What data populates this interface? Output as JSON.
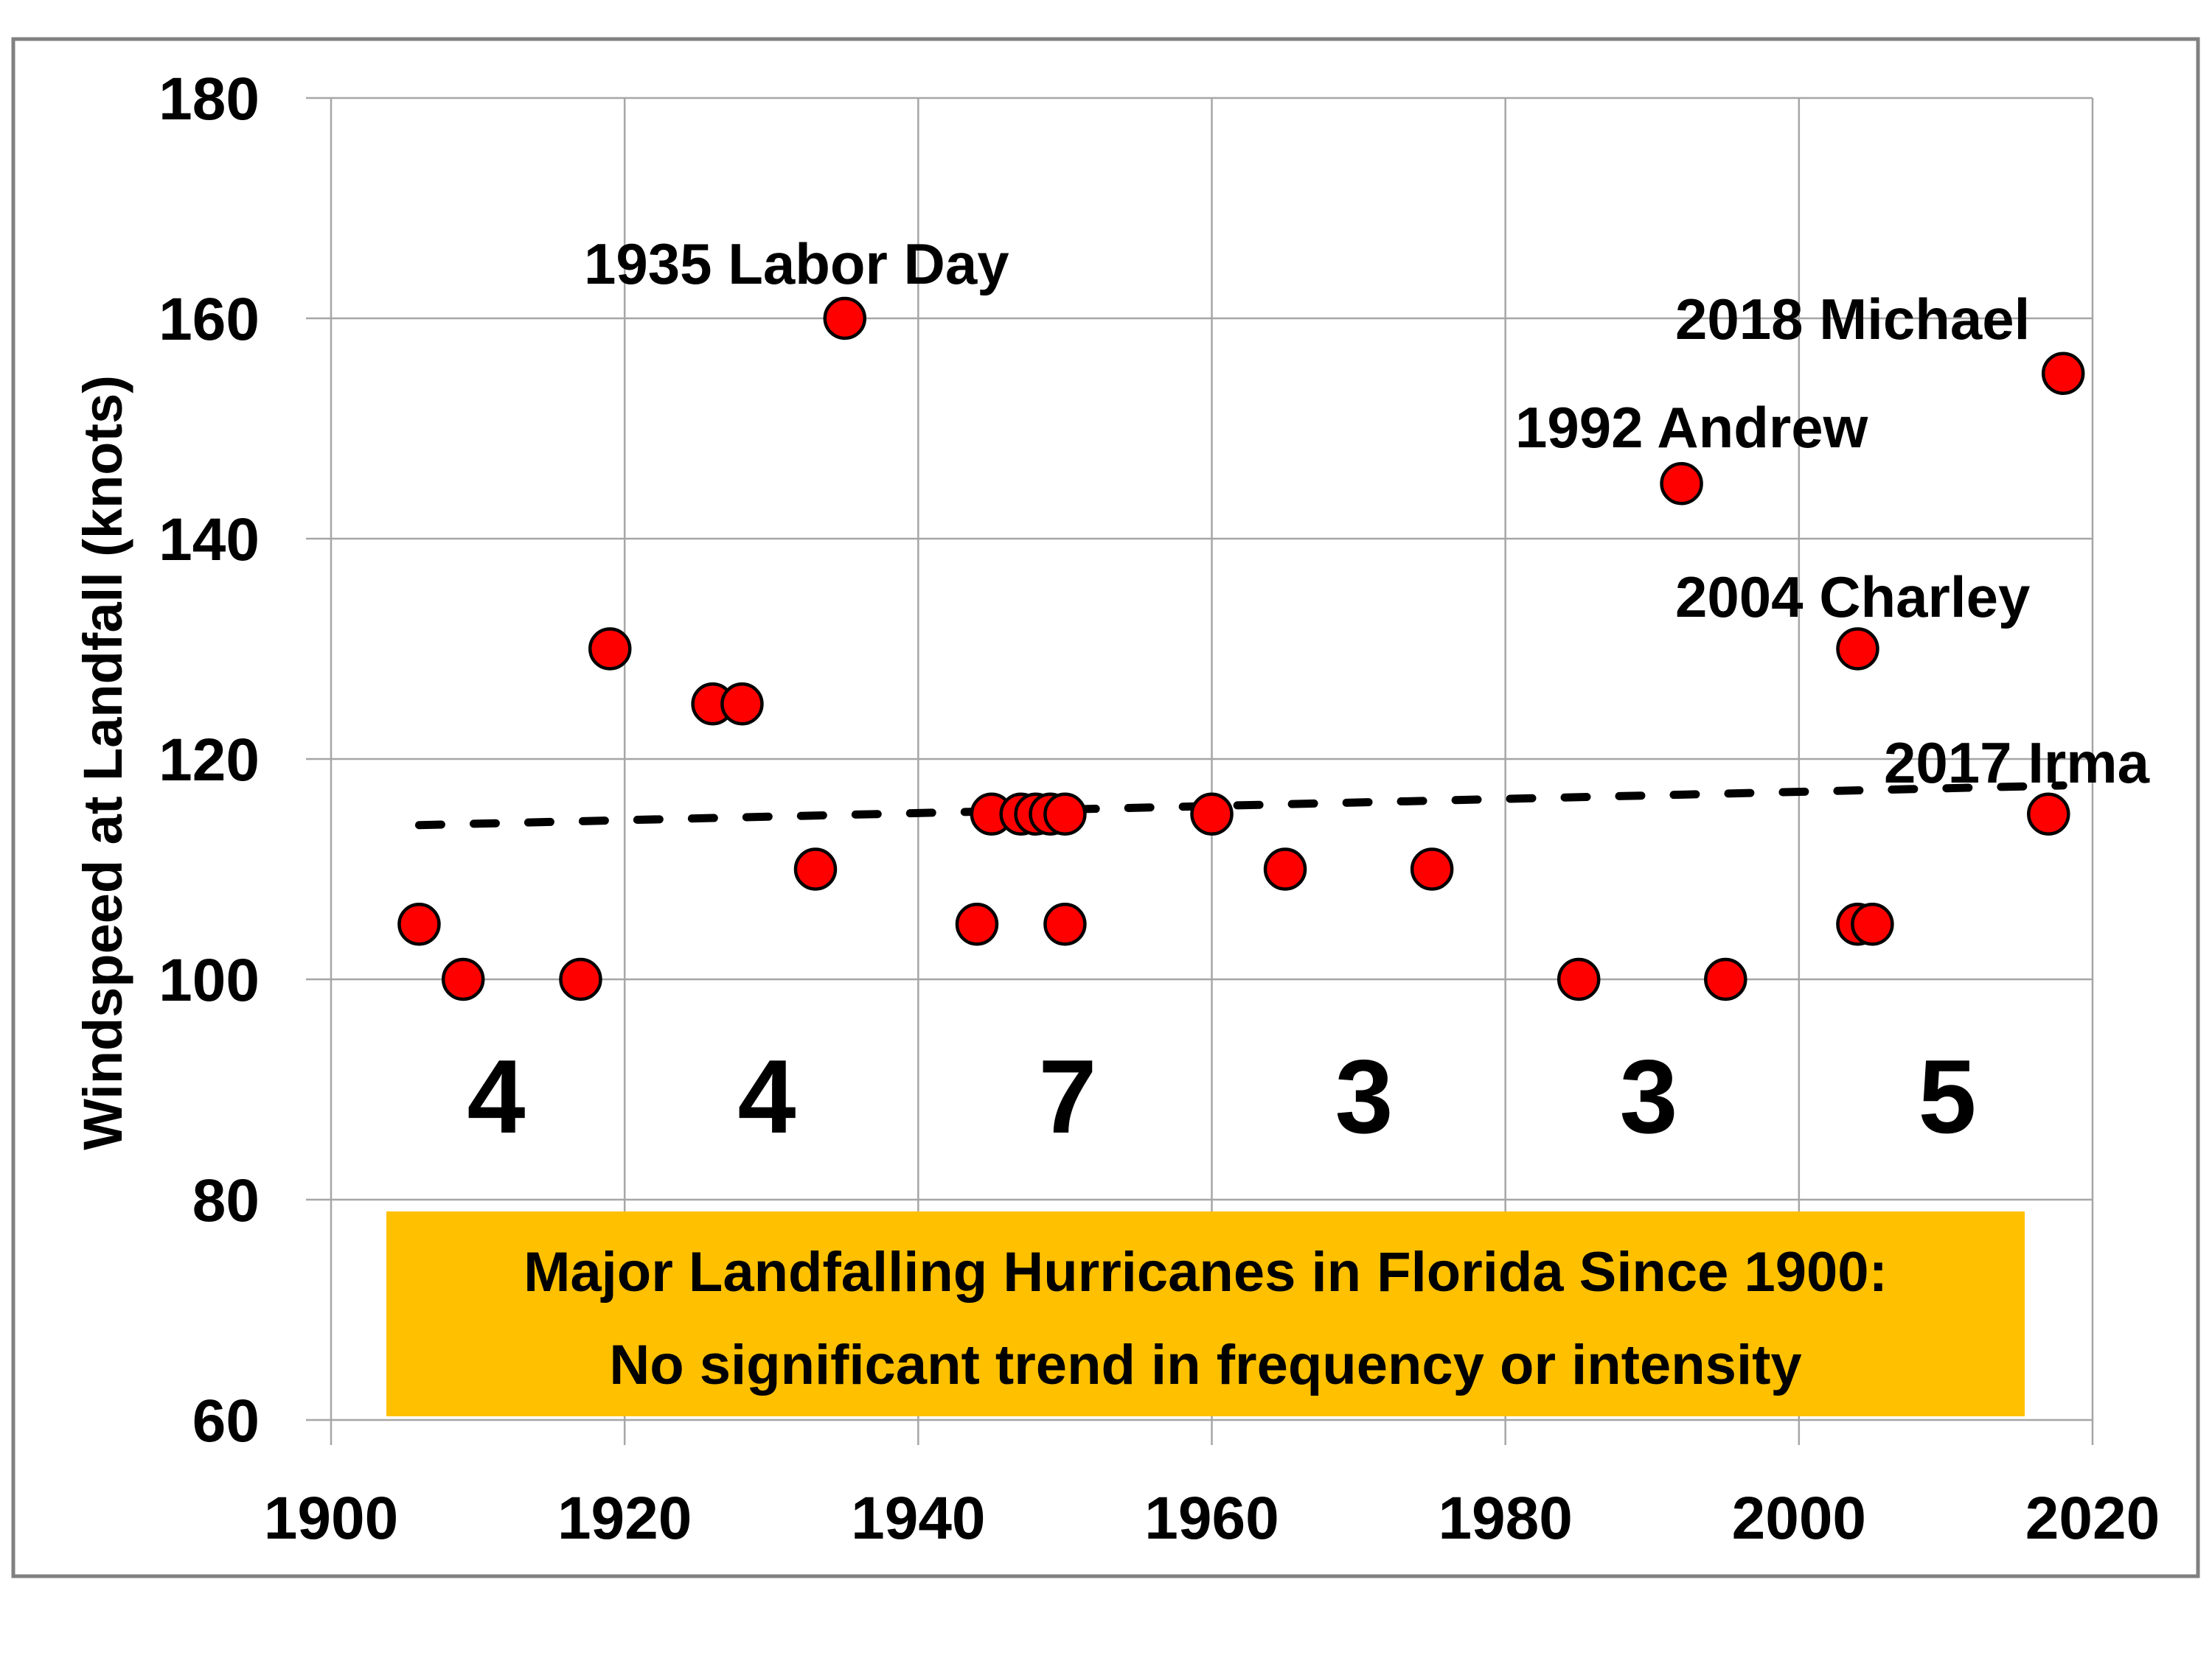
{
  "chart_data": {
    "type": "scatter",
    "title": "",
    "xlabel": "",
    "ylabel": "Windspeed at Landfall (knots)",
    "xlim": [
      1900,
      2020
    ],
    "ylim": [
      60,
      180
    ],
    "x_ticks": [
      "1900",
      "1920",
      "1940",
      "1960",
      "1980",
      "2000",
      "2020"
    ],
    "y_ticks": [
      "60",
      "80",
      "100",
      "120",
      "140",
      "160",
      "180"
    ],
    "grid": true,
    "legend": "none",
    "marker_color": "#ff0000",
    "series": [
      {
        "name": "Major landfalling hurricanes",
        "points": [
          {
            "x": 1906,
            "y": 105
          },
          {
            "x": 1909,
            "y": 100
          },
          {
            "x": 1917,
            "y": 100
          },
          {
            "x": 1919,
            "y": 130
          },
          {
            "x": 1926,
            "y": 125
          },
          {
            "x": 1928,
            "y": 125
          },
          {
            "x": 1933,
            "y": 110
          },
          {
            "x": 1935,
            "y": 160
          },
          {
            "x": 1944,
            "y": 105
          },
          {
            "x": 1945,
            "y": 115
          },
          {
            "x": 1947,
            "y": 115
          },
          {
            "x": 1948,
            "y": 115
          },
          {
            "x": 1949,
            "y": 115
          },
          {
            "x": 1950,
            "y": 115
          },
          {
            "x": 1950,
            "y": 105
          },
          {
            "x": 1960,
            "y": 115
          },
          {
            "x": 1965,
            "y": 110
          },
          {
            "x": 1975,
            "y": 110
          },
          {
            "x": 1985,
            "y": 100
          },
          {
            "x": 1992,
            "y": 145
          },
          {
            "x": 1995,
            "y": 100
          },
          {
            "x": 2004,
            "y": 130
          },
          {
            "x": 2004,
            "y": 105
          },
          {
            "x": 2005,
            "y": 105
          },
          {
            "x": 2017,
            "y": 115
          },
          {
            "x": 2018,
            "y": 155
          }
        ]
      }
    ],
    "trendline": {
      "style": "dashed",
      "color": "#000000",
      "start": {
        "x": 1906,
        "y": 114
      },
      "end": {
        "x": 2018,
        "y": 117.6
      }
    },
    "annotations": [
      {
        "text": "1935 Labor Day",
        "x": 1935,
        "y": 160
      },
      {
        "text": "1992 Andrew",
        "x": 1992,
        "y": 145
      },
      {
        "text": "2018 Michael",
        "x": 2018,
        "y": 155
      },
      {
        "text": "2004 Charley",
        "x": 2004,
        "y": 130
      },
      {
        "text": "2017 Irma",
        "x": 2017,
        "y": 115
      }
    ],
    "period_counts": [
      {
        "period": "1900-1919",
        "count": "4"
      },
      {
        "period": "1920-1939",
        "count": "4"
      },
      {
        "period": "1940-1959",
        "count": "7"
      },
      {
        "period": "1960-1979",
        "count": "3"
      },
      {
        "period": "1980-1999",
        "count": "3"
      },
      {
        "period": "2000-2019",
        "count": "5"
      }
    ],
    "callout": {
      "lines": [
        "Major Landfalling Hurricanes in Florida Since 1900:",
        "No significant trend in frequency or intensity"
      ],
      "background": "#ffc000"
    }
  }
}
